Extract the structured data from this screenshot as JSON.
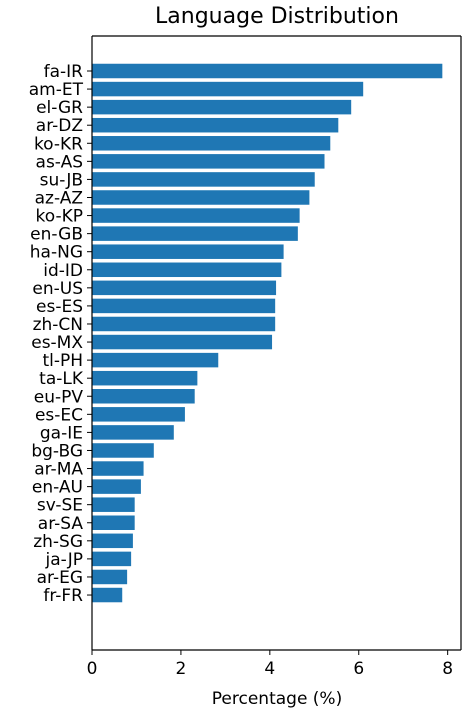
{
  "chart_data": {
    "type": "bar",
    "orientation": "horizontal",
    "title": "Language Distribution",
    "xlabel": "Percentage (%)",
    "ylabel": "",
    "xlim": [
      0,
      8.3
    ],
    "xticks": [
      0,
      2,
      4,
      6,
      8
    ],
    "grid": false,
    "bar_color": "#1f77b4",
    "categories": [
      "fa-IR",
      "am-ET",
      "el-GR",
      "ar-DZ",
      "ko-KR",
      "as-AS",
      "su-JB",
      "az-AZ",
      "ko-KP",
      "en-GB",
      "ha-NG",
      "id-ID",
      "en-US",
      "es-ES",
      "zh-CN",
      "es-MX",
      "tl-PH",
      "ta-LK",
      "eu-PV",
      "es-EC",
      "ga-IE",
      "bg-BG",
      "ar-MA",
      "en-AU",
      "sv-SE",
      "ar-SA",
      "zh-SG",
      "ja-JP",
      "ar-EG",
      "fr-FR"
    ],
    "values": [
      7.88,
      6.1,
      5.83,
      5.54,
      5.36,
      5.23,
      5.01,
      4.89,
      4.67,
      4.63,
      4.31,
      4.26,
      4.14,
      4.12,
      4.12,
      4.05,
      2.84,
      2.37,
      2.31,
      2.09,
      1.84,
      1.39,
      1.16,
      1.1,
      0.96,
      0.96,
      0.92,
      0.88,
      0.79,
      0.68
    ]
  }
}
